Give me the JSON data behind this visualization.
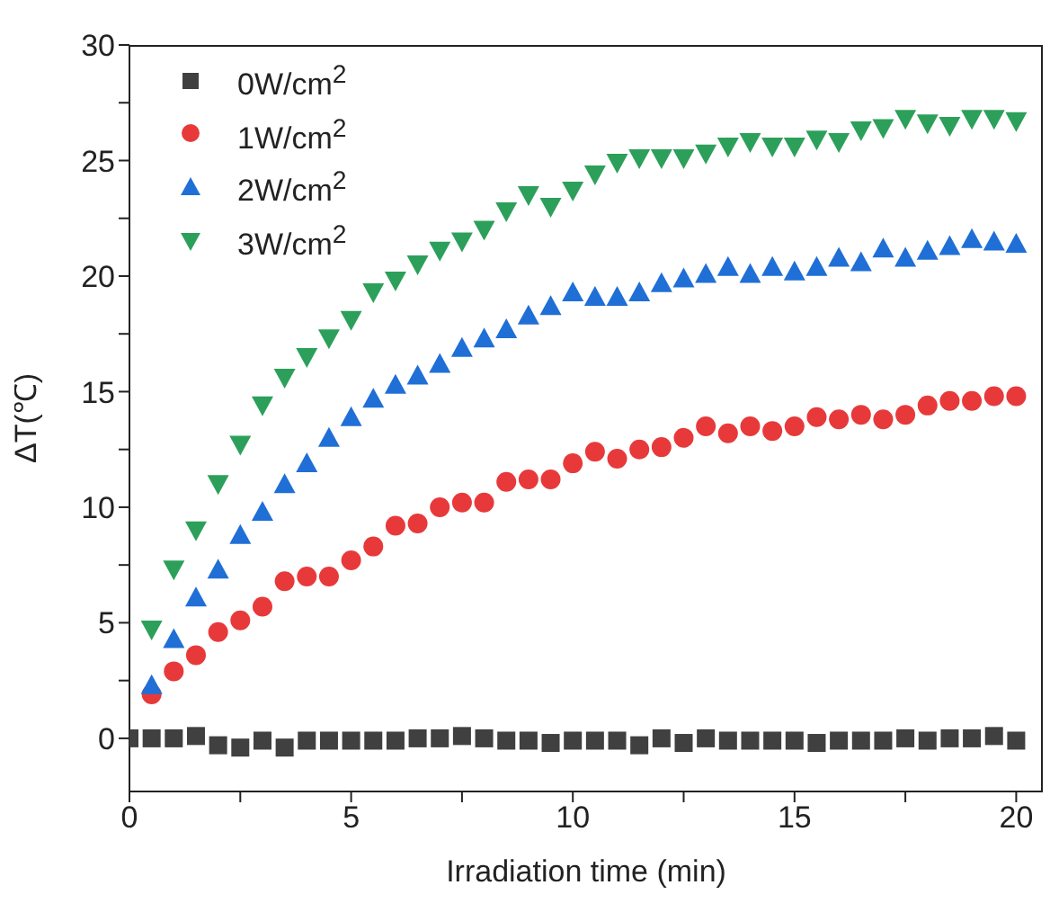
{
  "chart_data": {
    "type": "scatter",
    "xlabel": "Irradiation time (min)",
    "ylabel": "ΔT(℃)",
    "x": [
      0,
      0.5,
      1,
      1.5,
      2,
      2.5,
      3,
      3.5,
      4,
      4.5,
      5,
      5.5,
      6,
      6.5,
      7,
      7.5,
      8,
      8.5,
      9,
      9.5,
      10,
      10.5,
      11,
      11.5,
      12,
      12.5,
      13,
      13.5,
      14,
      14.5,
      15,
      15.5,
      16,
      16.5,
      17,
      17.5,
      18,
      18.5,
      19,
      19.5,
      20
    ],
    "series": [
      {
        "name": "0W/cm$^{2}$",
        "color": "#404040",
        "marker": "square",
        "values": [
          0,
          0,
          0,
          0.1,
          -0.3,
          -0.4,
          -0.1,
          -0.4,
          -0.1,
          -0.1,
          -0.1,
          -0.1,
          -0.1,
          0,
          0,
          0.1,
          0,
          -0.1,
          -0.1,
          -0.2,
          -0.1,
          -0.1,
          -0.1,
          -0.3,
          0,
          -0.2,
          0,
          -0.1,
          -0.1,
          -0.1,
          -0.1,
          -0.2,
          -0.1,
          -0.1,
          -0.1,
          0,
          -0.1,
          0,
          0,
          0.1,
          -0.1
        ]
      },
      {
        "name": "1W/cm$^{2}$",
        "color": "#e8393a",
        "marker": "circle",
        "values": [
          null,
          1.9,
          2.9,
          3.6,
          4.6,
          5.1,
          5.7,
          6.8,
          7.0,
          7.0,
          7.7,
          8.3,
          9.2,
          9.3,
          10.0,
          10.2,
          10.2,
          11.1,
          11.2,
          11.2,
          11.9,
          12.4,
          12.1,
          12.5,
          12.6,
          13.0,
          13.5,
          13.2,
          13.5,
          13.3,
          13.5,
          13.9,
          13.8,
          14.0,
          13.8,
          14.0,
          14.4,
          14.6,
          14.6,
          14.8,
          14.8
        ]
      },
      {
        "name": "2W/cm$^{2}$",
        "color": "#1f6fd6",
        "marker": "triangle",
        "values": [
          null,
          2.3,
          4.3,
          6.1,
          7.3,
          8.8,
          9.8,
          11.0,
          11.9,
          13.0,
          13.9,
          14.7,
          15.3,
          15.7,
          16.2,
          16.9,
          17.3,
          17.7,
          18.3,
          18.7,
          19.3,
          19.1,
          19.1,
          19.3,
          19.7,
          19.9,
          20.1,
          20.4,
          20.1,
          20.4,
          20.2,
          20.4,
          20.8,
          20.6,
          21.2,
          20.8,
          21.1,
          21.3,
          21.6,
          21.5,
          21.4
        ]
      },
      {
        "name": "3W/cm$^{2}$",
        "color": "#2ca05a",
        "marker": "triangle-down",
        "values": [
          null,
          4.7,
          7.3,
          9.0,
          11.0,
          12.7,
          14.4,
          15.6,
          16.5,
          17.3,
          18.1,
          19.3,
          19.8,
          20.5,
          21.1,
          21.5,
          22.0,
          22.8,
          23.5,
          23.0,
          23.7,
          24.4,
          24.9,
          25.1,
          25.1,
          25.1,
          25.3,
          25.6,
          25.8,
          25.6,
          25.6,
          25.9,
          25.8,
          26.3,
          26.4,
          26.8,
          26.6,
          26.5,
          26.8,
          26.8,
          26.7
        ]
      }
    ],
    "xlim": [
      0,
      20.6
    ],
    "xticks": [
      0,
      {
        "value": 2.5,
        "label": null
      },
      5,
      {
        "value": 7.5,
        "label": null
      },
      10,
      {
        "value": 12.5,
        "label": null
      },
      15,
      {
        "value": 17.5,
        "label": null
      },
      20
    ],
    "ylim": [
      -2.3,
      30
    ],
    "yticks": [
      0,
      {
        "value": 2.5,
        "label": null
      },
      5,
      {
        "value": 7.5,
        "label": null
      },
      10,
      {
        "value": 12.5,
        "label": null
      },
      15,
      {
        "value": 17.5,
        "label": null
      },
      20,
      {
        "value": 22.5,
        "label": null
      },
      25,
      {
        "value": 27.5,
        "label": null
      },
      30
    ],
    "grid": false,
    "legend": "top left"
  }
}
